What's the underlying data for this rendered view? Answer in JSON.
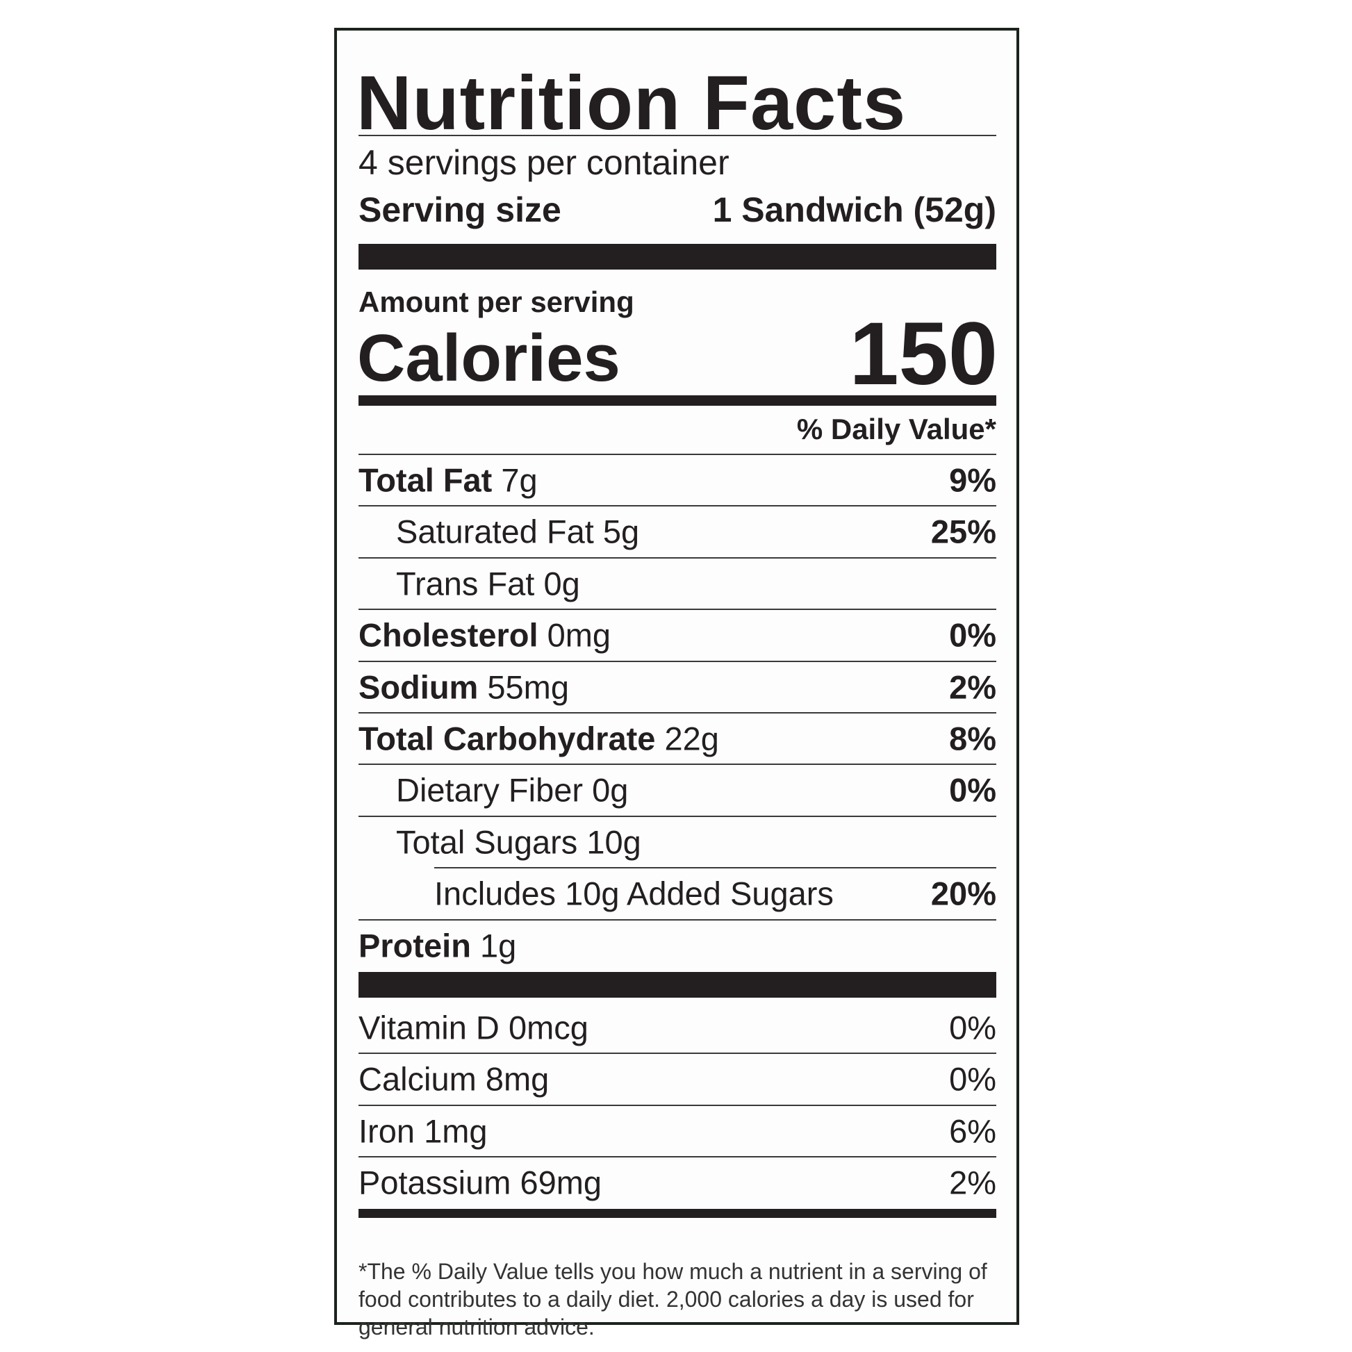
{
  "title": "Nutrition Facts",
  "servings_per_container": "4 servings per container",
  "serving_size": {
    "label": "Serving size",
    "value": "1 Sandwich (52g)"
  },
  "amount_per_serving": "Amount per serving",
  "calories": {
    "label": "Calories",
    "value": "150"
  },
  "daily_value_header": "% Daily Value*",
  "nutrients": [
    {
      "name": "Total Fat",
      "amount": "7g",
      "dv": "9%",
      "bold": true,
      "indent": 0
    },
    {
      "name": "Saturated Fat",
      "amount": "5g",
      "dv": "25%",
      "bold": false,
      "indent": 1
    },
    {
      "name": "Trans Fat",
      "amount": "0g",
      "dv": "",
      "bold": false,
      "indent": 1
    },
    {
      "name": "Cholesterol",
      "amount": "0mg",
      "dv": "0%",
      "bold": true,
      "indent": 0
    },
    {
      "name": "Sodium",
      "amount": "55mg",
      "dv": "2%",
      "bold": true,
      "indent": 0
    },
    {
      "name": "Total Carbohydrate",
      "amount": "22g",
      "dv": "8%",
      "bold": true,
      "indent": 0
    },
    {
      "name": "Dietary Fiber",
      "amount": "0g",
      "dv": "0%",
      "bold": false,
      "indent": 1
    },
    {
      "name": "Total Sugars",
      "amount": "10g",
      "dv": "",
      "bold": false,
      "indent": 1
    },
    {
      "name": "Includes 10g Added Sugars",
      "amount": "",
      "dv": "20%",
      "bold": false,
      "indent": 2
    },
    {
      "name": "Protein",
      "amount": "1g",
      "dv": "",
      "bold": true,
      "indent": 0
    }
  ],
  "vitamins": [
    {
      "name": "Vitamin D",
      "amount": "0mcg",
      "dv": "0%"
    },
    {
      "name": "Calcium",
      "amount": "8mg",
      "dv": "0%"
    },
    {
      "name": "Iron",
      "amount": "1mg",
      "dv": "6%"
    },
    {
      "name": "Potassium",
      "amount": "69mg",
      "dv": "2%"
    }
  ],
  "footnote": "*The % Daily Value tells you how much a nutrient in a serving of food contributes to a daily diet. 2,000 calories a day is used for general nutrition advice."
}
